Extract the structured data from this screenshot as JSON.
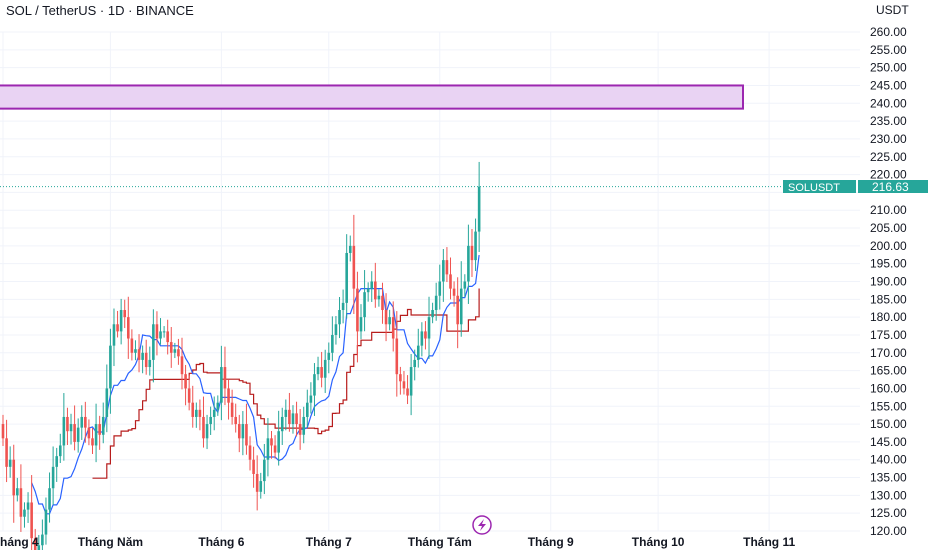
{
  "header": {
    "symbol_title": "SOL / TetherUS · 1D · BINANCE",
    "currency": "USDT"
  },
  "price_label": {
    "symbol": "SOLUSDT",
    "value": "216.63"
  },
  "colors": {
    "up": "#26a69a",
    "down": "#ef5350",
    "fast_line": "#2962ff",
    "slow_line": "#b71c1c",
    "zone_fill": "#e9d3f3",
    "zone_border": "#9c27b0",
    "price_line": "#26a69a",
    "grid": "#f0f3fa"
  },
  "chart_data": {
    "type": "candlestick",
    "pair": "SOLUSDT",
    "exchange": "BINANCE",
    "timeframe": "1D",
    "y_axis": {
      "min": 120,
      "max": 260,
      "ticks": [
        "260.00",
        "255.00",
        "250.00",
        "245.00",
        "240.00",
        "235.00",
        "230.00",
        "225.00",
        "220.00",
        "215.00",
        "210.00",
        "205.00",
        "200.00",
        "195.00",
        "190.00",
        "185.00",
        "180.00",
        "175.00",
        "170.00",
        "165.00",
        "160.00",
        "155.00",
        "150.00",
        "145.00",
        "140.00",
        "135.00",
        "130.00",
        "125.00",
        "120.00"
      ]
    },
    "x_axis": {
      "labels": [
        {
          "label": "háng 4",
          "day": 0
        },
        {
          "label": "Tháng Năm",
          "day": 30
        },
        {
          "label": "Tháng 6",
          "day": 61
        },
        {
          "label": "Tháng 7",
          "day": 91
        },
        {
          "label": "Tháng Tám",
          "day": 122
        },
        {
          "label": "Tháng 9",
          "day": 153
        },
        {
          "label": "Tháng 10",
          "day": 183
        },
        {
          "label": "Tháng 11",
          "day": 214
        }
      ]
    },
    "resistance_zone": {
      "low": 238.5,
      "high": 245
    },
    "last_price": 216.63,
    "closes": [
      146,
      138,
      140,
      130,
      132,
      124,
      126,
      128,
      118,
      114,
      116,
      119,
      126,
      132,
      138,
      141,
      144,
      152,
      148,
      150,
      145,
      149,
      152,
      149,
      146,
      144,
      150,
      147,
      152,
      160,
      172,
      178,
      176,
      182,
      180,
      174,
      170,
      171,
      168,
      170,
      166,
      168,
      178,
      174,
      176,
      176,
      173,
      170,
      171,
      169,
      164,
      160,
      156,
      152,
      154,
      152,
      146,
      150,
      152,
      154,
      156,
      166,
      160,
      156,
      152,
      150,
      146,
      150,
      144,
      140,
      136,
      131,
      134,
      140,
      146,
      144,
      142,
      148,
      152,
      154,
      150,
      153,
      150,
      147,
      152,
      156,
      158,
      164,
      166,
      163,
      168,
      170,
      175,
      178,
      182,
      184,
      198,
      200,
      188,
      176,
      180,
      187,
      188,
      190,
      185,
      186,
      182,
      178,
      180,
      174,
      164,
      162,
      160,
      158,
      166,
      168,
      172,
      176,
      174,
      180,
      182,
      186,
      190,
      196,
      192,
      188,
      186,
      178,
      188,
      190,
      200,
      196,
      204,
      216.6
    ],
    "fast_line_periods": 9,
    "slow_line_periods": 26
  }
}
